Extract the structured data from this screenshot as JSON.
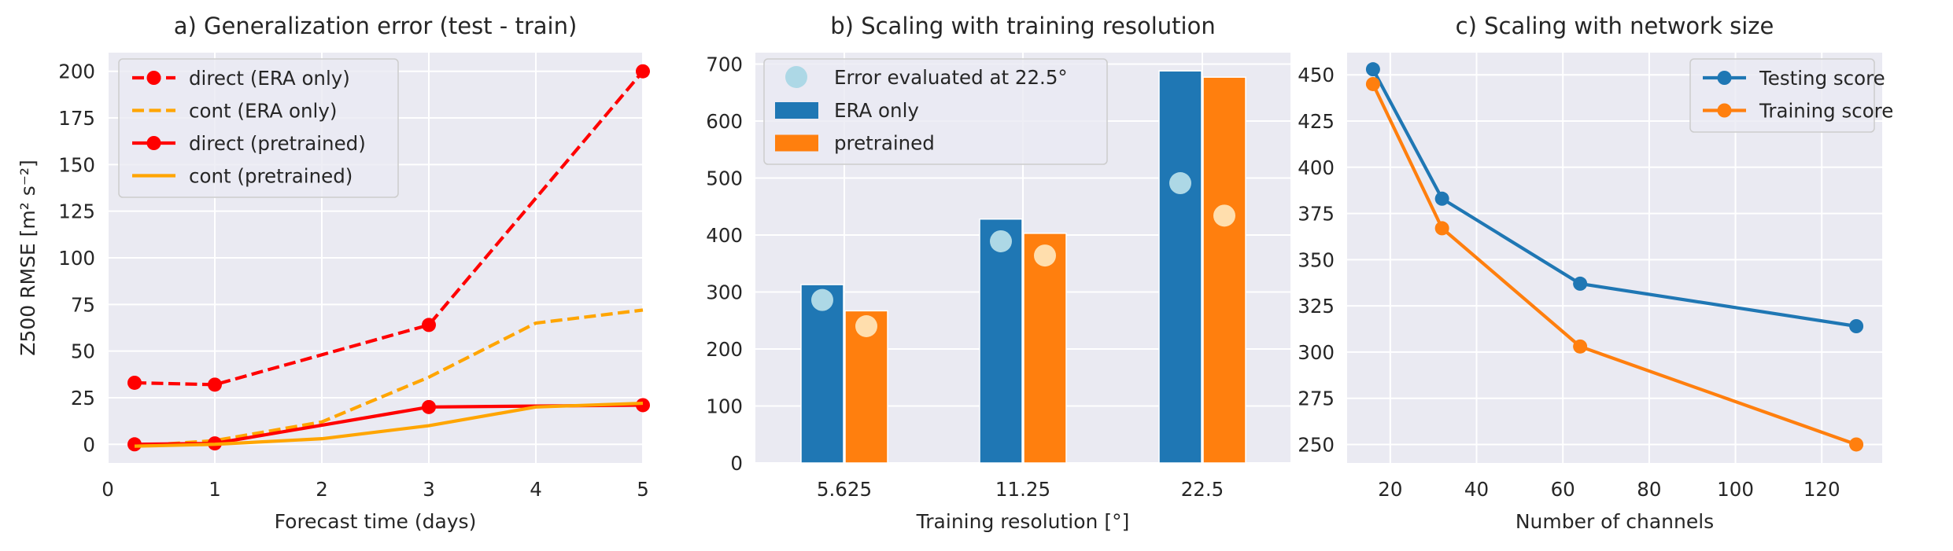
{
  "chart_data": [
    {
      "type": "line",
      "title": "a) Generalization error (test - train)",
      "xlabel": "Forecast time (days)",
      "ylabel": "Z500 RMSE [m² s⁻²]",
      "xlim": [
        0,
        5
      ],
      "ylim": [
        -10,
        210
      ],
      "xticks": [
        "0",
        "1",
        "2",
        "3",
        "4",
        "5"
      ],
      "yticks": [
        "0",
        "25",
        "50",
        "75",
        "100",
        "125",
        "150",
        "175",
        "200"
      ],
      "grid": true,
      "legend_position": "upper-left",
      "series": [
        {
          "name": "direct (ERA only)",
          "color": "#ff0000",
          "style": "dashed",
          "markers": true,
          "x": [
            0.25,
            1,
            3,
            5
          ],
          "y": [
            33,
            32,
            64,
            200
          ]
        },
        {
          "name": "cont (ERA only)",
          "color": "#ffa500",
          "style": "dashed",
          "markers": false,
          "x": [
            0.25,
            1,
            2,
            3,
            4,
            5
          ],
          "y": [
            -1,
            2,
            12,
            36,
            65,
            72
          ]
        },
        {
          "name": "direct (pretrained)",
          "color": "#ff0000",
          "style": "solid",
          "markers": true,
          "x": [
            0.25,
            1,
            3,
            5
          ],
          "y": [
            0,
            0.5,
            20,
            21
          ]
        },
        {
          "name": "cont (pretrained)",
          "color": "#ffa500",
          "style": "solid",
          "markers": false,
          "x": [
            0.25,
            1,
            2,
            3,
            4,
            5
          ],
          "y": [
            -1,
            0,
            3,
            10,
            20,
            22
          ]
        }
      ]
    },
    {
      "type": "bar",
      "title": "b) Scaling with training resolution",
      "xlabel": "Training resolution [°]",
      "ylabel": "",
      "ylim": [
        0,
        720
      ],
      "yticks": [
        "0",
        "100",
        "200",
        "300",
        "400",
        "500",
        "600",
        "700"
      ],
      "categories": [
        "5.625",
        "11.25",
        "22.5"
      ],
      "grid": true,
      "legend_position": "upper-left",
      "series": [
        {
          "name": "ERA only",
          "color": "#1f77b4",
          "values": [
            313,
            428,
            688
          ]
        },
        {
          "name": "pretrained",
          "color": "#ff7f0e",
          "values": [
            267,
            403,
            677
          ]
        }
      ],
      "overlay_points": {
        "name": "Error evaluated at 22.5°",
        "series": [
          {
            "color": "#add8e6",
            "values": [
              286,
              389,
              491
            ]
          },
          {
            "color": "#ffdead",
            "values": [
              240,
              364,
              434
            ]
          }
        ]
      }
    },
    {
      "type": "line",
      "title": "c) Scaling with network size",
      "xlabel": "Number of channels",
      "ylabel": "",
      "xlim": [
        10,
        134
      ],
      "ylim": [
        240,
        462
      ],
      "xticks": [
        "20",
        "40",
        "60",
        "80",
        "100",
        "120"
      ],
      "yticks": [
        "250",
        "275",
        "300",
        "325",
        "350",
        "375",
        "400",
        "425",
        "450"
      ],
      "grid": true,
      "legend_position": "upper-right",
      "series": [
        {
          "name": "Testing score",
          "color": "#1f77b4",
          "markers": true,
          "x": [
            16,
            32,
            64,
            128
          ],
          "y": [
            453,
            383,
            337,
            314
          ]
        },
        {
          "name": "Training score",
          "color": "#ff7f0e",
          "markers": true,
          "x": [
            16,
            32,
            64,
            128
          ],
          "y": [
            445,
            367,
            303,
            250
          ]
        }
      ]
    }
  ]
}
